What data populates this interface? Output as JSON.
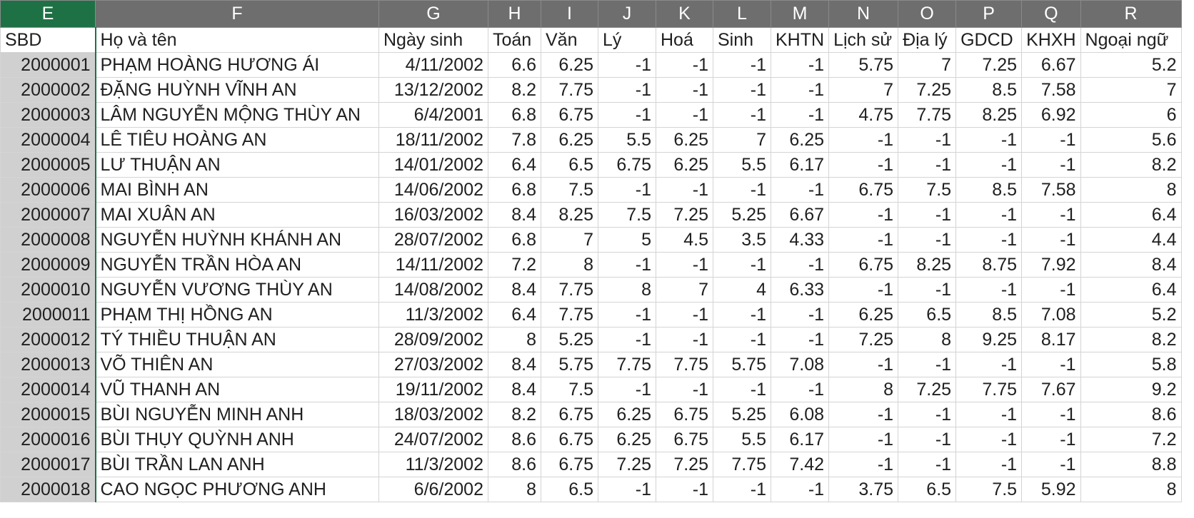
{
  "column_letters": [
    "E",
    "F",
    "G",
    "H",
    "I",
    "J",
    "K",
    "L",
    "M",
    "N",
    "O",
    "P",
    "Q",
    "R"
  ],
  "selected_column": "E",
  "headers": [
    "SBD",
    "Họ và tên",
    "Ngày sinh",
    "Toán",
    "Văn",
    "Lý",
    "Hoá",
    "Sinh",
    "KHTN",
    "Lịch sử",
    "Địa lý",
    "GDCD",
    "KHXH",
    "Ngoại ngữ"
  ],
  "rows": [
    [
      "2000001",
      "PHẠM HOÀNG HƯƠNG ÁI",
      "4/11/2002",
      "6.6",
      "6.25",
      "-1",
      "-1",
      "-1",
      "-1",
      "5.75",
      "7",
      "7.25",
      "6.67",
      "5.2"
    ],
    [
      "2000002",
      "ĐẶNG HUỲNH VĨNH AN",
      "13/12/2002",
      "8.2",
      "7.75",
      "-1",
      "-1",
      "-1",
      "-1",
      "7",
      "7.25",
      "8.5",
      "7.58",
      "7"
    ],
    [
      "2000003",
      "LÂM NGUYỄN MỘNG THÙY AN",
      "6/4/2001",
      "6.8",
      "6.75",
      "-1",
      "-1",
      "-1",
      "-1",
      "4.75",
      "7.75",
      "8.25",
      "6.92",
      "6"
    ],
    [
      "2000004",
      "LÊ TIÊU HOÀNG AN",
      "18/11/2002",
      "7.8",
      "6.25",
      "5.5",
      "6.25",
      "7",
      "6.25",
      "-1",
      "-1",
      "-1",
      "-1",
      "5.6"
    ],
    [
      "2000005",
      "LƯ THUẬN AN",
      "14/01/2002",
      "6.4",
      "6.5",
      "6.75",
      "6.25",
      "5.5",
      "6.17",
      "-1",
      "-1",
      "-1",
      "-1",
      "8.2"
    ],
    [
      "2000006",
      "MAI BÌNH AN",
      "14/06/2002",
      "6.8",
      "7.5",
      "-1",
      "-1",
      "-1",
      "-1",
      "6.75",
      "7.5",
      "8.5",
      "7.58",
      "8"
    ],
    [
      "2000007",
      "MAI XUÂN AN",
      "16/03/2002",
      "8.4",
      "8.25",
      "7.5",
      "7.25",
      "5.25",
      "6.67",
      "-1",
      "-1",
      "-1",
      "-1",
      "6.4"
    ],
    [
      "2000008",
      "NGUYỄN HUỲNH KHÁNH AN",
      "28/07/2002",
      "6.8",
      "7",
      "5",
      "4.5",
      "3.5",
      "4.33",
      "-1",
      "-1",
      "-1",
      "-1",
      "4.4"
    ],
    [
      "2000009",
      "NGUYỄN TRẦN HÒA AN",
      "14/11/2002",
      "7.2",
      "8",
      "-1",
      "-1",
      "-1",
      "-1",
      "6.75",
      "8.25",
      "8.75",
      "7.92",
      "8.4"
    ],
    [
      "2000010",
      "NGUYỄN VƯƠNG THÙY AN",
      "14/08/2002",
      "8.4",
      "7.75",
      "8",
      "7",
      "4",
      "6.33",
      "-1",
      "-1",
      "-1",
      "-1",
      "6.4"
    ],
    [
      "2000011",
      "PHẠM THỊ HỒNG AN",
      "11/3/2002",
      "6.4",
      "7.75",
      "-1",
      "-1",
      "-1",
      "-1",
      "6.25",
      "6.5",
      "8.5",
      "7.08",
      "5.2"
    ],
    [
      "2000012",
      "TÝ THIỀU THUẬN AN",
      "28/09/2002",
      "8",
      "5.25",
      "-1",
      "-1",
      "-1",
      "-1",
      "7.25",
      "8",
      "9.25",
      "8.17",
      "8.2"
    ],
    [
      "2000013",
      "VÕ THIÊN AN",
      "27/03/2002",
      "8.4",
      "5.75",
      "7.75",
      "7.75",
      "5.75",
      "7.08",
      "-1",
      "-1",
      "-1",
      "-1",
      "5.8"
    ],
    [
      "2000014",
      "VŨ THANH AN",
      "19/11/2002",
      "8.4",
      "7.5",
      "-1",
      "-1",
      "-1",
      "-1",
      "8",
      "7.25",
      "7.75",
      "7.67",
      "9.2"
    ],
    [
      "2000015",
      "BÙI NGUYỄN MINH ANH",
      "18/03/2002",
      "8.2",
      "6.75",
      "6.25",
      "6.75",
      "5.25",
      "6.08",
      "-1",
      "-1",
      "-1",
      "-1",
      "8.6"
    ],
    [
      "2000016",
      "BÙI THỤY QUỲNH ANH",
      "24/07/2002",
      "8.6",
      "6.75",
      "6.25",
      "6.75",
      "5.5",
      "6.17",
      "-1",
      "-1",
      "-1",
      "-1",
      "7.2"
    ],
    [
      "2000017",
      "BÙI TRẦN LAN ANH",
      "11/3/2002",
      "8.6",
      "6.75",
      "7.25",
      "7.25",
      "7.75",
      "7.42",
      "-1",
      "-1",
      "-1",
      "-1",
      "8.8"
    ],
    [
      "2000018",
      "CAO NGỌC PHƯƠNG ANH",
      "6/6/2002",
      "8",
      "6.5",
      "-1",
      "-1",
      "-1",
      "-1",
      "3.75",
      "6.5",
      "7.5",
      "5.92",
      "8"
    ]
  ],
  "colors": {
    "header_bg": "#6e6e6e",
    "selected_header_bg": "#1e7145",
    "selected_cell_bg": "#d0d0d0",
    "gridline": "#d4d4d4"
  }
}
